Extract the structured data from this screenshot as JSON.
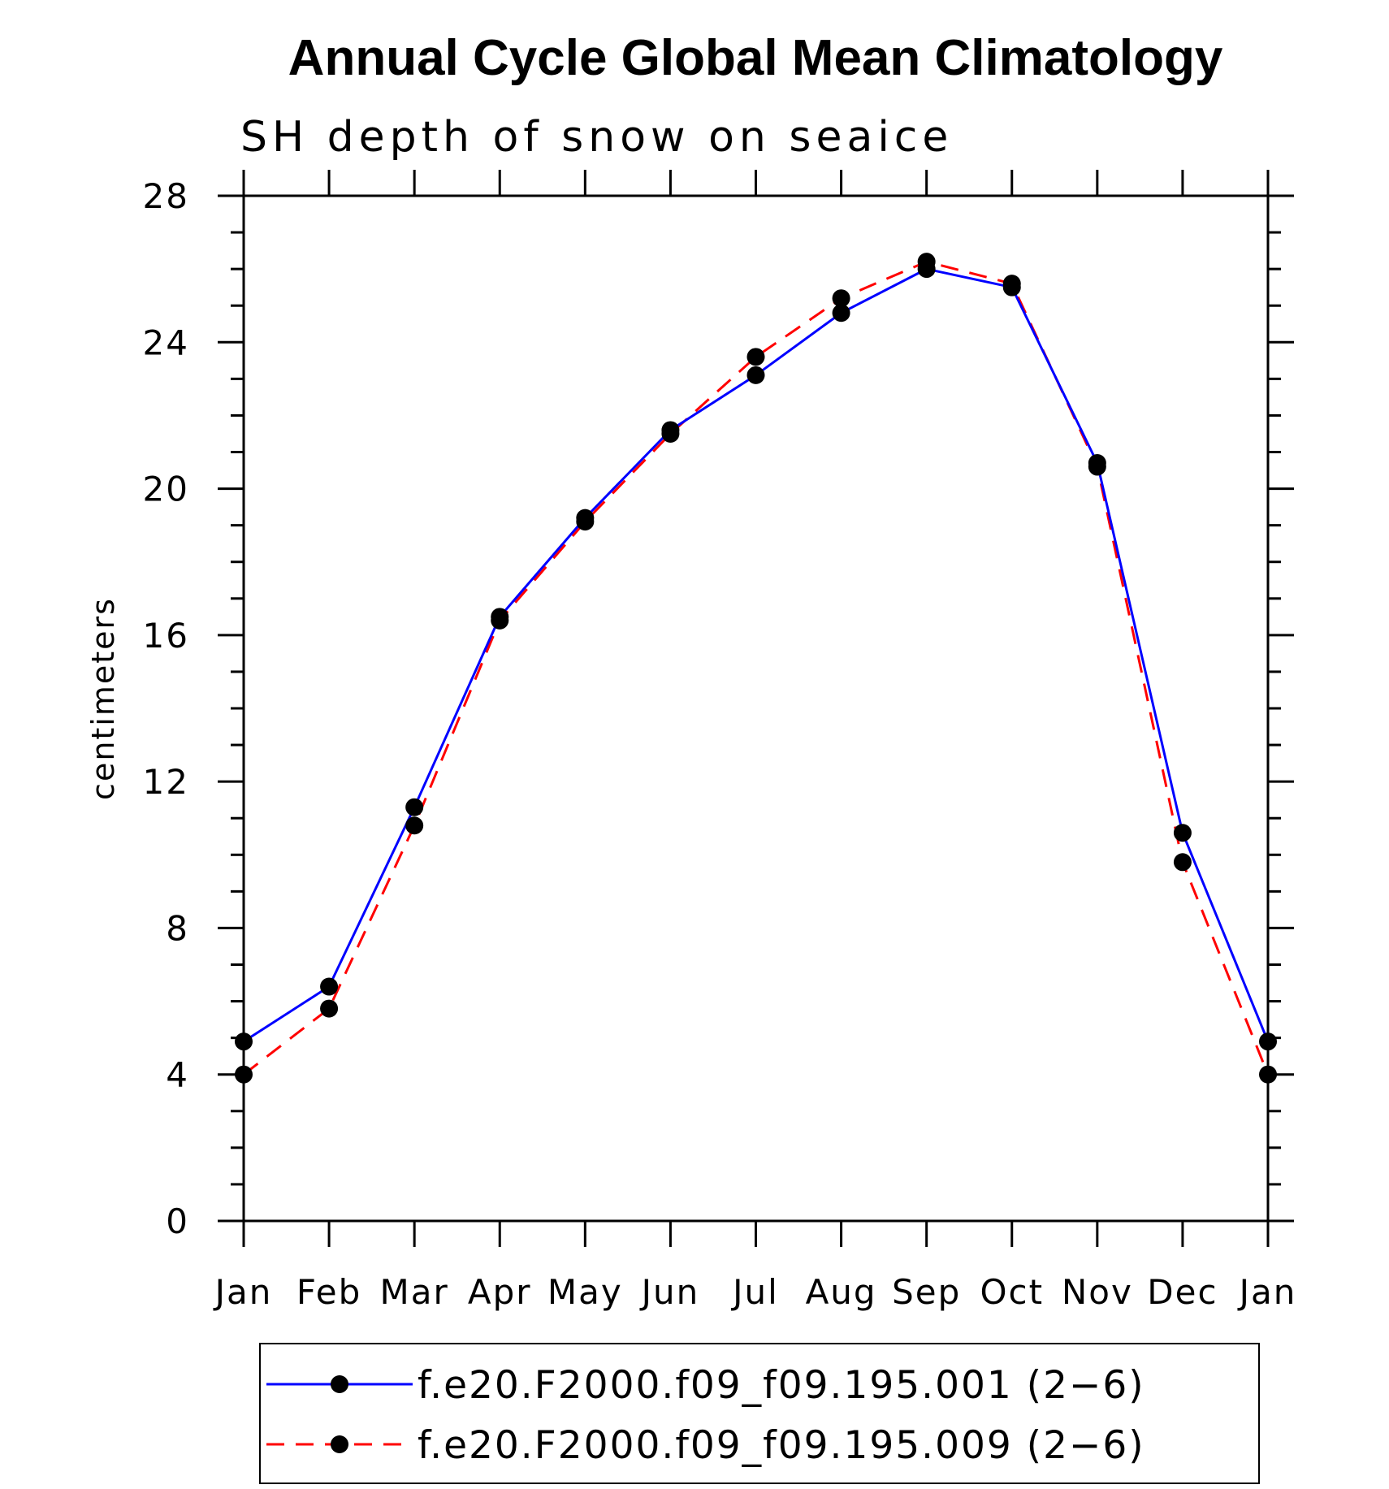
{
  "chart_data": {
    "type": "line",
    "title": "Annual Cycle Global Mean Climatology",
    "subtitle": "SH depth of snow on seaice",
    "xlabel": "",
    "ylabel": "centimeters",
    "categories": [
      "Jan",
      "Feb",
      "Mar",
      "Apr",
      "May",
      "Jun",
      "Jul",
      "Aug",
      "Sep",
      "Oct",
      "Nov",
      "Dec",
      "Jan"
    ],
    "ylim": [
      0,
      28
    ],
    "yticks": [
      "0",
      "4",
      "8",
      "12",
      "16",
      "20",
      "24",
      "28"
    ],
    "series": [
      {
        "name": "f.e20.F2000.f09_f09.195.001 (2−6)",
        "color": "#0000ff",
        "dash": "solid",
        "marker": "filled-circle",
        "values": [
          4.9,
          6.4,
          11.3,
          16.5,
          19.2,
          21.6,
          23.1,
          24.8,
          26.0,
          25.5,
          20.7,
          10.6,
          4.9
        ]
      },
      {
        "name": "f.e20.F2000.f09_f09.195.009 (2−6)",
        "color": "#ff0000",
        "dash": "dashed",
        "marker": "filled-circle",
        "values": [
          4.0,
          5.8,
          10.8,
          16.4,
          19.1,
          21.5,
          23.6,
          25.2,
          26.2,
          25.6,
          20.6,
          9.8,
          4.0
        ]
      }
    ],
    "grid": false,
    "legend_position": "bottom"
  }
}
